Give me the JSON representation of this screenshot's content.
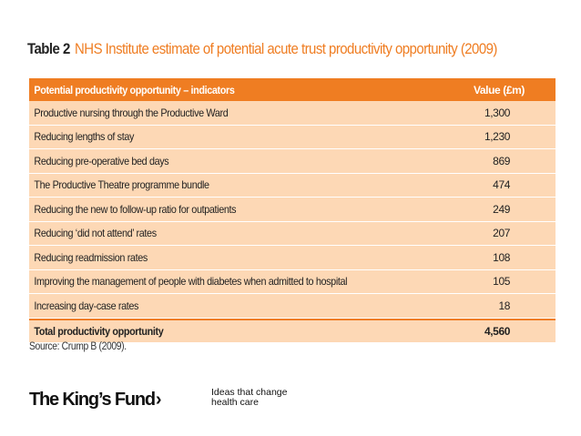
{
  "title": {
    "label": "Table 2",
    "text": "NHS Institute estimate of potential acute trust productivity opportunity (2009)"
  },
  "table": {
    "headers": {
      "indicator": "Potential productivity opportunity – indicators",
      "value": "Value (£m)"
    },
    "rows": [
      {
        "indicator": "Productive nursing through the Productive Ward",
        "value": "1,300"
      },
      {
        "indicator": "Reducing lengths of stay",
        "value": "1,230"
      },
      {
        "indicator": "Reducing pre-operative bed days",
        "value": "869"
      },
      {
        "indicator": "The Productive Theatre programme bundle",
        "value": "474"
      },
      {
        "indicator": "Reducing the new to follow-up ratio for outpatients",
        "value": "249"
      },
      {
        "indicator": "Reducing ‘did not attend’ rates",
        "value": "207"
      },
      {
        "indicator": "Reducing readmission rates",
        "value": "108"
      },
      {
        "indicator": "Improving the management of people with diabetes when admitted to hospital",
        "value": "105"
      },
      {
        "indicator": "Increasing day-case rates",
        "value": "18"
      }
    ],
    "total": {
      "indicator": "Total productivity opportunity",
      "value": "4,560"
    }
  },
  "source": "Source: Crump B (2009).",
  "footer": {
    "brand": "The King’s Fund",
    "brand_chevron": "›",
    "tagline_line1": "Ideas that change",
    "tagline_line2": "health care"
  },
  "colors": {
    "accent": "#ef7d22",
    "table_bg": "#fdd8b5"
  }
}
